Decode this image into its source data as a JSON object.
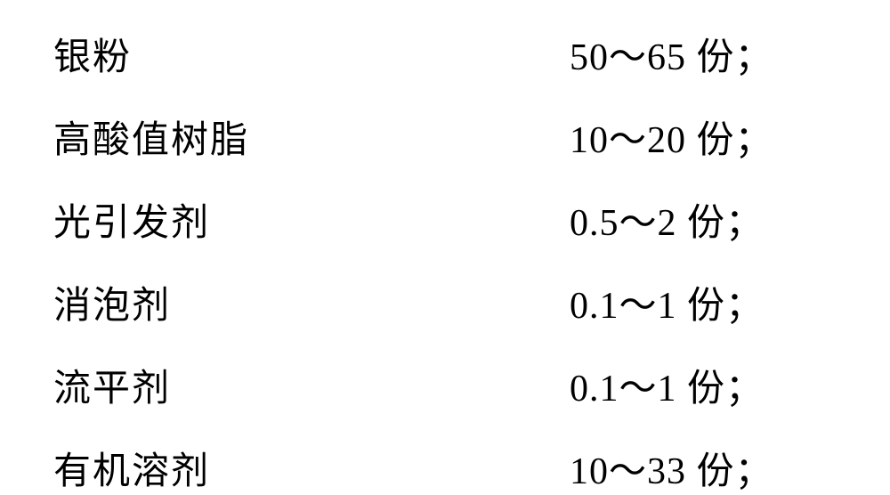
{
  "composition_table": {
    "type": "table",
    "background_color": "#ffffff",
    "text_color": "#000000",
    "font_size": 42,
    "font_family": "SimSun",
    "rows": [
      {
        "label": "银粉",
        "value": "50～65 份；"
      },
      {
        "label": "高酸值树脂",
        "value": "10～20 份；"
      },
      {
        "label": "光引发剂",
        "value": "0.5～2 份；"
      },
      {
        "label": "消泡剂",
        "value": "0.1～1 份；"
      },
      {
        "label": "流平剂",
        "value": "0.1～1 份；"
      },
      {
        "label": "有机溶剂",
        "value": "10～33 份；"
      }
    ]
  }
}
